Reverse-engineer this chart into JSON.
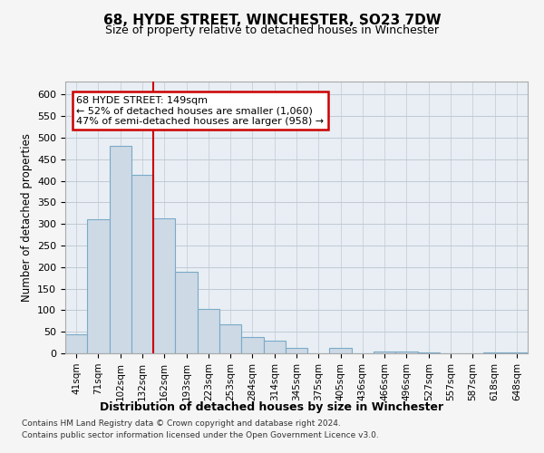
{
  "title": "68, HYDE STREET, WINCHESTER, SO23 7DW",
  "subtitle": "Size of property relative to detached houses in Winchester",
  "xlabel": "Distribution of detached houses by size in Winchester",
  "ylabel": "Number of detached properties",
  "categories": [
    "41sqm",
    "71sqm",
    "102sqm",
    "132sqm",
    "162sqm",
    "193sqm",
    "223sqm",
    "253sqm",
    "284sqm",
    "314sqm",
    "345sqm",
    "375sqm",
    "405sqm",
    "436sqm",
    "466sqm",
    "496sqm",
    "527sqm",
    "557sqm",
    "587sqm",
    "618sqm",
    "648sqm"
  ],
  "values": [
    45,
    310,
    480,
    413,
    313,
    190,
    102,
    68,
    37,
    30,
    13,
    0,
    13,
    0,
    5,
    4,
    2,
    0,
    0,
    3,
    2
  ],
  "bar_color": "#cdd9e5",
  "bar_edge_color": "#7aaac8",
  "property_line_x": 3.5,
  "annotation_line1": "68 HYDE STREET: 149sqm",
  "annotation_line2": "← 52% of detached houses are smaller (1,060)",
  "annotation_line3": "47% of semi-detached houses are larger (958) →",
  "annotation_box_color": "#ffffff",
  "annotation_box_edge": "#cc0000",
  "vline_color": "#cc0000",
  "ylim": [
    0,
    630
  ],
  "yticks": [
    0,
    50,
    100,
    150,
    200,
    250,
    300,
    350,
    400,
    450,
    500,
    550,
    600
  ],
  "footer_line1": "Contains HM Land Registry data © Crown copyright and database right 2024.",
  "footer_line2": "Contains public sector information licensed under the Open Government Licence v3.0.",
  "bg_color": "#f5f5f5",
  "plot_bg_color": "#e8eef4",
  "grid_color": "#c0cad4",
  "title_fontsize": 11,
  "subtitle_fontsize": 9
}
